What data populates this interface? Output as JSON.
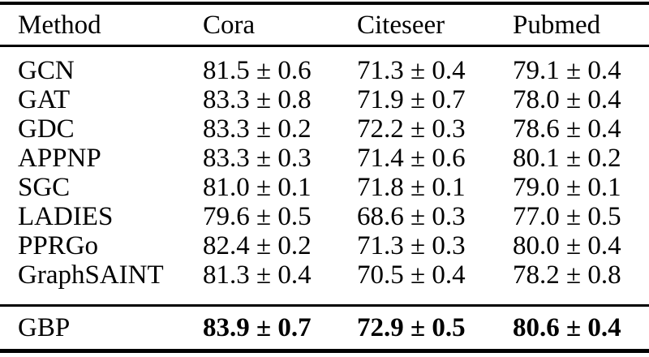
{
  "table": {
    "columns": [
      "Method",
      "Cora",
      "Citeseer",
      "Pubmed"
    ],
    "rows": [
      {
        "method": "GCN",
        "cora": "81.5 ± 0.6",
        "citeseer": "71.3 ± 0.4",
        "pubmed": "79.1 ± 0.4"
      },
      {
        "method": "GAT",
        "cora": "83.3 ± 0.8",
        "citeseer": "71.9 ± 0.7",
        "pubmed": "78.0 ± 0.4"
      },
      {
        "method": "GDC",
        "cora": "83.3 ± 0.2",
        "citeseer": "72.2 ± 0.3",
        "pubmed": "78.6 ± 0.4"
      },
      {
        "method": "APPNP",
        "cora": "83.3 ± 0.3",
        "citeseer": "71.4 ± 0.6",
        "pubmed": "80.1 ± 0.2"
      },
      {
        "method": "SGC",
        "cora": "81.0 ± 0.1",
        "citeseer": "71.8 ± 0.1",
        "pubmed": "79.0 ± 0.1"
      },
      {
        "method": "LADIES",
        "cora": "79.6 ± 0.5",
        "citeseer": "68.6 ± 0.3",
        "pubmed": "77.0 ± 0.5"
      },
      {
        "method": "PPRGo",
        "cora": "82.4 ± 0.2",
        "citeseer": "71.3 ± 0.3",
        "pubmed": "80.0 ± 0.4"
      },
      {
        "method": "GraphSAINT",
        "cora": "81.3 ± 0.4",
        "citeseer": "70.5 ± 0.4",
        "pubmed": "78.2 ± 0.8"
      }
    ],
    "highlight_row": {
      "method": "GBP",
      "cora": "83.9 ± 0.7",
      "citeseer": "72.9 ± 0.5",
      "pubmed": "80.6 ± 0.4"
    }
  },
  "colors": {
    "text": "#000000",
    "background": "#ffffff",
    "rule": "#000000"
  }
}
